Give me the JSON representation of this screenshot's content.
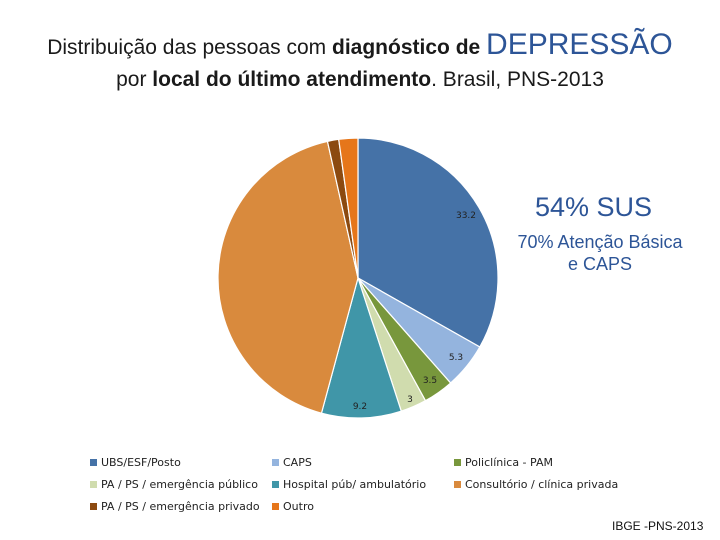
{
  "title": {
    "line1_prefix": "Distribuição das pessoas com ",
    "line1_bold": "diagnóstico de",
    "line1_big": "DEPRESSÃO",
    "line2_prefix": "por ",
    "line2_bold": "local do último atendimento",
    "line2_suffix": ". Brasil, PNS-2013"
  },
  "annotations": {
    "sus": "54%  SUS",
    "aps_line1": "70% Atenção Básica",
    "aps_line2": "e CAPS"
  },
  "source": "IBGE -PNS-2013",
  "colors": {
    "UBS": "#4572a7",
    "CAPS": "#94b4de",
    "Policlinica": "#78973c",
    "PA_publico": "#d0dcae",
    "Hospital": "#4096a8",
    "Consultorio": "#d98a3d",
    "PA_privado": "#8c4a10",
    "Outro": "#e6761a"
  },
  "chart_data": {
    "type": "pie",
    "title": "Distribuição das pessoas com diagnóstico de DEPRESSÃO por local do último atendimento. Brasil, PNS-2013",
    "slices": [
      {
        "key": "UBS",
        "label": "UBS/ESF/Posto",
        "value": 33.2,
        "data_label": "33.2"
      },
      {
        "key": "CAPS",
        "label": "CAPS",
        "value": 5.3,
        "data_label": "5.3"
      },
      {
        "key": "Policlinica",
        "label": "Policlínica - PAM",
        "value": 3.5,
        "data_label": "3.5"
      },
      {
        "key": "PA_publico",
        "label": "PA / PS / emergência público",
        "value": 3.0,
        "data_label": "3"
      },
      {
        "key": "Hospital",
        "label": "Hospital púb/ ambulatório",
        "value": 9.2,
        "data_label": "9.2"
      },
      {
        "key": "Consultorio",
        "label": "Consultório / clínica privada",
        "value": 42.3,
        "data_label": ""
      },
      {
        "key": "PA_privado",
        "label": "PA / PS / emergência privado",
        "value": 1.3,
        "data_label": ""
      },
      {
        "key": "Outro",
        "label": "Outro",
        "value": 2.2,
        "data_label": ""
      }
    ],
    "start_angle_deg": 0,
    "direction": "clockwise",
    "legend_position": "bottom"
  }
}
